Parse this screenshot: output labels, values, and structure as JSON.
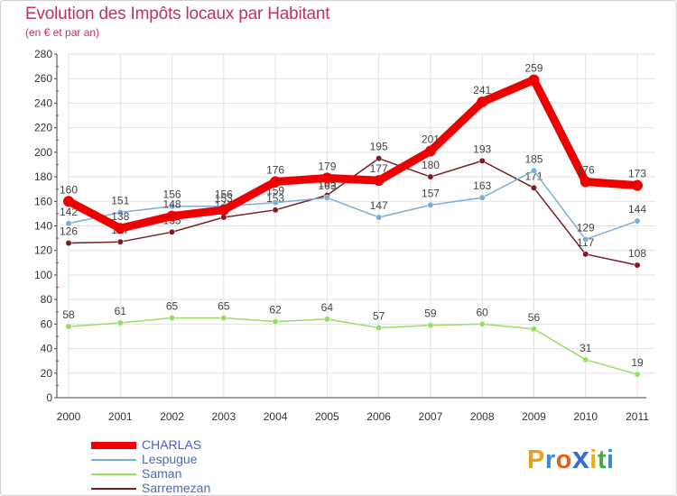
{
  "header": {
    "title": "Evolution des Impôts locaux par Habitant",
    "subtitle": "(en € et par an)"
  },
  "logo": {
    "text": "Proxiti",
    "letters": [
      "P",
      "r",
      "o",
      "x",
      "i",
      "t",
      "i"
    ],
    "letter_colors": [
      "#e8a020",
      "#3a8ad8",
      "#e06020",
      "#3a6ad8",
      "#e8b020",
      "#4aa848",
      "#3a8ad8"
    ]
  },
  "colors": {
    "title": "#c0306a",
    "axis": "#444444",
    "grid": "#e2e2e2",
    "tick_mark": "#c0306a"
  },
  "chart_data": {
    "type": "line",
    "title": "Evolution des Impôts locaux par Habitant",
    "subtitle": "(en € et par an)",
    "xlabel": "",
    "ylabel": "",
    "categories": [
      "2000",
      "2001",
      "2002",
      "2003",
      "2004",
      "2005",
      "2006",
      "2007",
      "2008",
      "2009",
      "2010",
      "2011"
    ],
    "ylim": [
      0,
      280
    ],
    "yticks": [
      0,
      20,
      40,
      60,
      80,
      100,
      120,
      140,
      160,
      180,
      200,
      220,
      240,
      260,
      280
    ],
    "grid": true,
    "legend_position": "bottom-left",
    "series": [
      {
        "name": "Sarremezan",
        "color": "#7a1c24",
        "legend_color": "#6b2a30",
        "values": [
          126,
          127,
          135,
          147,
          153,
          165,
          195,
          180,
          193,
          171,
          117,
          108
        ]
      },
      {
        "name": "Saman",
        "color": "#99dd66",
        "legend_color": "#8ad060",
        "values": [
          58,
          61,
          65,
          65,
          62,
          64,
          57,
          59,
          60,
          56,
          31,
          19
        ]
      },
      {
        "name": "Lespugue",
        "color": "#7aaed8",
        "legend_color": "#6a9cc8",
        "values": [
          142,
          151,
          156,
          156,
          159,
          163,
          147,
          157,
          163,
          185,
          129,
          144
        ]
      },
      {
        "name": "CHARLAS",
        "color": "#ee0000",
        "legend_color": "#4a5ad8",
        "values": [
          160,
          138,
          148,
          153,
          176,
          179,
          177,
          201,
          241,
          259,
          176,
          173
        ]
      }
    ],
    "legend_order": [
      "CHARLAS",
      "Lespugue",
      "Saman",
      "Sarremezan"
    ]
  }
}
